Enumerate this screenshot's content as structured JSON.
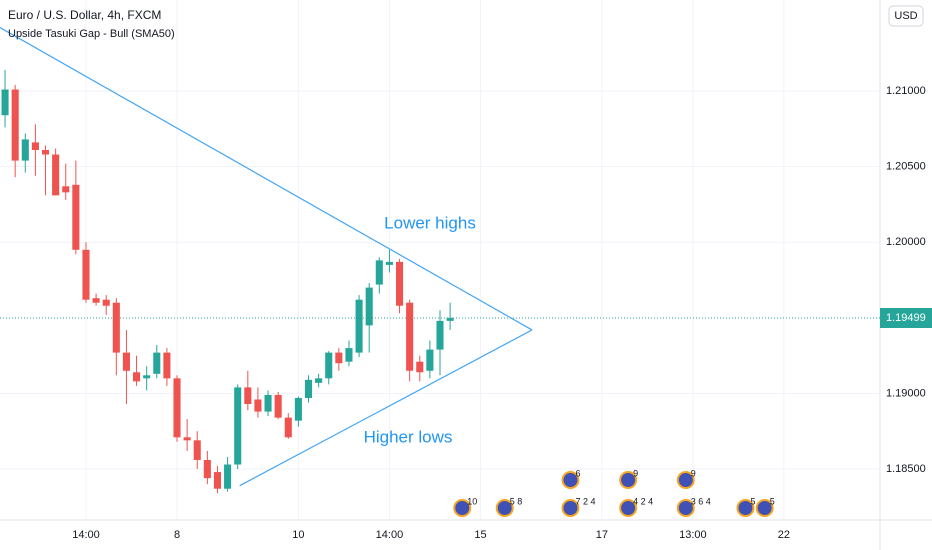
{
  "chart_data": {
    "type": "candlestick",
    "title": "Euro / U.S. Dollar, 4h, FXCM",
    "subtitle": "Upside Tasuki Gap - Bull (SMA50)",
    "currency": "USD",
    "up_color": "#26a69a",
    "down_color": "#ef5350",
    "open": [
      1.2084,
      1.2101,
      1.2054,
      1.2066,
      1.2061,
      1.2058,
      1.2037,
      1.2038,
      1.1995,
      1.1963,
      1.1962,
      1.196,
      1.1927,
      1.1914,
      1.191,
      1.1913,
      1.1927,
      1.191,
      1.1871,
      1.1869,
      1.1856,
      1.1848,
      1.1837,
      1.1853,
      1.1904,
      1.1896,
      1.1888,
      1.1899,
      1.1884,
      1.1882,
      1.1897,
      1.1907,
      1.191,
      1.1927,
      1.1921,
      1.1927,
      1.1945,
      1.1972,
      1.1985,
      1.1987,
      1.196,
      1.1921,
      1.1915,
      1.1929,
      1.1948
    ],
    "high": [
      1.2114,
      1.2104,
      1.2072,
      1.2078,
      1.2064,
      1.2062,
      1.2052,
      1.2054,
      1.2,
      1.1966,
      1.1965,
      1.1963,
      1.1942,
      1.1925,
      1.1918,
      1.1932,
      1.193,
      1.1912,
      1.1883,
      1.1875,
      1.1862,
      1.1852,
      1.1858,
      1.1906,
      1.1915,
      1.1904,
      1.1902,
      1.1901,
      1.1887,
      1.1898,
      1.1912,
      1.1913,
      1.1928,
      1.193,
      1.1935,
      1.1965,
      1.1973,
      1.199,
      1.1995,
      1.1989,
      1.1962,
      1.1925,
      1.1935,
      1.1955,
      1.196
    ],
    "low": [
      1.2076,
      1.2043,
      1.2046,
      1.2044,
      1.2031,
      1.2031,
      1.2028,
      1.1992,
      1.196,
      1.1958,
      1.1952,
      1.1912,
      1.1893,
      1.1905,
      1.1902,
      1.191,
      1.1905,
      1.1868,
      1.1862,
      1.185,
      1.184,
      1.1834,
      1.1835,
      1.185,
      1.1889,
      1.1884,
      1.1885,
      1.1883,
      1.187,
      1.1878,
      1.1894,
      1.1904,
      1.1906,
      1.1915,
      1.1918,
      1.1924,
      1.1927,
      1.1966,
      1.198,
      1.1953,
      1.1908,
      1.1908,
      1.191,
      1.1912,
      1.1942
    ],
    "close": [
      1.2101,
      1.2054,
      1.2068,
      1.2061,
      1.2058,
      1.2031,
      1.2033,
      1.1995,
      1.1962,
      1.196,
      1.1958,
      1.1927,
      1.1915,
      1.1908,
      1.1912,
      1.1927,
      1.191,
      1.1871,
      1.1869,
      1.1856,
      1.1844,
      1.1837,
      1.1853,
      1.1904,
      1.1893,
      1.1888,
      1.1899,
      1.1884,
      1.1871,
      1.1897,
      1.1909,
      1.191,
      1.1927,
      1.192,
      1.193,
      1.1962,
      1.197,
      1.1988,
      1.1987,
      1.1958,
      1.1915,
      1.1914,
      1.1929,
      1.1948,
      1.195
    ],
    "xlim": [
      -0.5,
      86.5
    ],
    "xticks": [
      {
        "value": 8,
        "label": "14:00"
      },
      {
        "value": 17,
        "label": "8"
      },
      {
        "value": 29,
        "label": "10"
      },
      {
        "value": 38,
        "label": "14:00"
      },
      {
        "value": 47,
        "label": "15"
      },
      {
        "value": 59,
        "label": "17"
      },
      {
        "value": 68,
        "label": "13:00"
      },
      {
        "value": 77,
        "label": "22"
      }
    ],
    "ylim": [
      1.18163,
      1.21602
    ],
    "yticks": [
      {
        "value": 1.185,
        "label": "1.18500"
      },
      {
        "value": 1.19,
        "label": "1.19000"
      },
      {
        "value": 1.2,
        "label": "1.20000"
      },
      {
        "value": 1.205,
        "label": "1.20500"
      },
      {
        "value": 1.21,
        "label": "1.21000"
      }
    ],
    "grid": true,
    "last_price": 1.19499,
    "last_price_color": "#26a69a",
    "trendline_color": "#42a5f5",
    "trendlines": [
      {
        "x": [
          -0.5,
          52.1
        ],
        "y": [
          1.2142,
          1.1942
        ]
      },
      {
        "x": [
          23.2,
          52.1
        ],
        "y": [
          1.1839,
          1.1942
        ]
      }
    ],
    "annotations": [
      {
        "text": "Lower highs"
      },
      {
        "text": "Higher lows"
      }
    ],
    "events_top": [
      {
        "x": 55.9,
        "label": "6"
      },
      {
        "x": 61.6,
        "label": "9"
      },
      {
        "x": 67.3,
        "label": "9"
      }
    ],
    "events_bottom": [
      {
        "x": 45.2,
        "label": "10"
      },
      {
        "x": 49.4,
        "label": "5 8"
      },
      {
        "x": 55.9,
        "label": "7 2 4"
      },
      {
        "x": 61.6,
        "label": "4 2 4"
      },
      {
        "x": 67.3,
        "label": "3 6 4"
      },
      {
        "x": 73.2,
        "label": "5"
      },
      {
        "x": 75.1,
        "label": "5"
      }
    ]
  }
}
